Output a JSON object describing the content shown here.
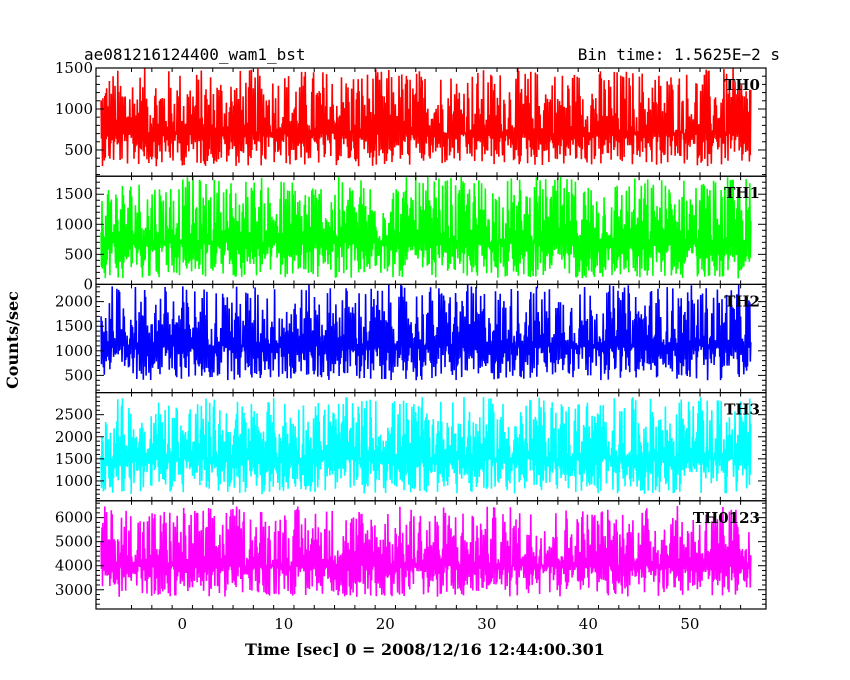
{
  "chart_data": {
    "type": "line",
    "title_left": "ae081216124400_wam1_bst",
    "title_right": "Bin time: 1.5625E−2 s",
    "xlabel": "Time [sec] 0 = 2008/12/16 12:44:00.301",
    "ylabel": "Counts/sec",
    "xlim": [
      -8.5,
      57.5
    ],
    "x_ticks": [
      0,
      10,
      20,
      30,
      40,
      50
    ],
    "data_x_range": [
      -8,
      56
    ],
    "bin_time_s": 0.015625,
    "panels": [
      {
        "name": "TH0",
        "color": "#ff0000",
        "ylim": [
          180,
          1500
        ],
        "y_ticks": [
          500,
          1000,
          1500
        ],
        "y_mean": 700,
        "y_low": 300,
        "y_high": 1500
      },
      {
        "name": "TH1",
        "color": "#00ff00",
        "ylim": [
          0,
          1800
        ],
        "y_ticks": [
          0,
          500,
          1000,
          1500
        ],
        "y_mean": 700,
        "y_low": 100,
        "y_high": 1800
      },
      {
        "name": "TH2",
        "color": "#0000ff",
        "ylim": [
          150,
          2350
        ],
        "y_ticks": [
          500,
          1000,
          1500,
          2000
        ],
        "y_mean": 1100,
        "y_low": 400,
        "y_high": 2350
      },
      {
        "name": "TH3",
        "color": "#00ffff",
        "ylim": [
          550,
          3000
        ],
        "y_ticks": [
          1000,
          1500,
          2000,
          2500
        ],
        "y_mean": 1500,
        "y_low": 700,
        "y_high": 2900
      },
      {
        "name": "TH0123",
        "color": "#ff00ff",
        "ylim": [
          2200,
          6700
        ],
        "y_ticks": [
          3000,
          4000,
          5000,
          6000
        ],
        "y_mean": 4000,
        "y_low": 2700,
        "y_high": 6500
      }
    ]
  }
}
